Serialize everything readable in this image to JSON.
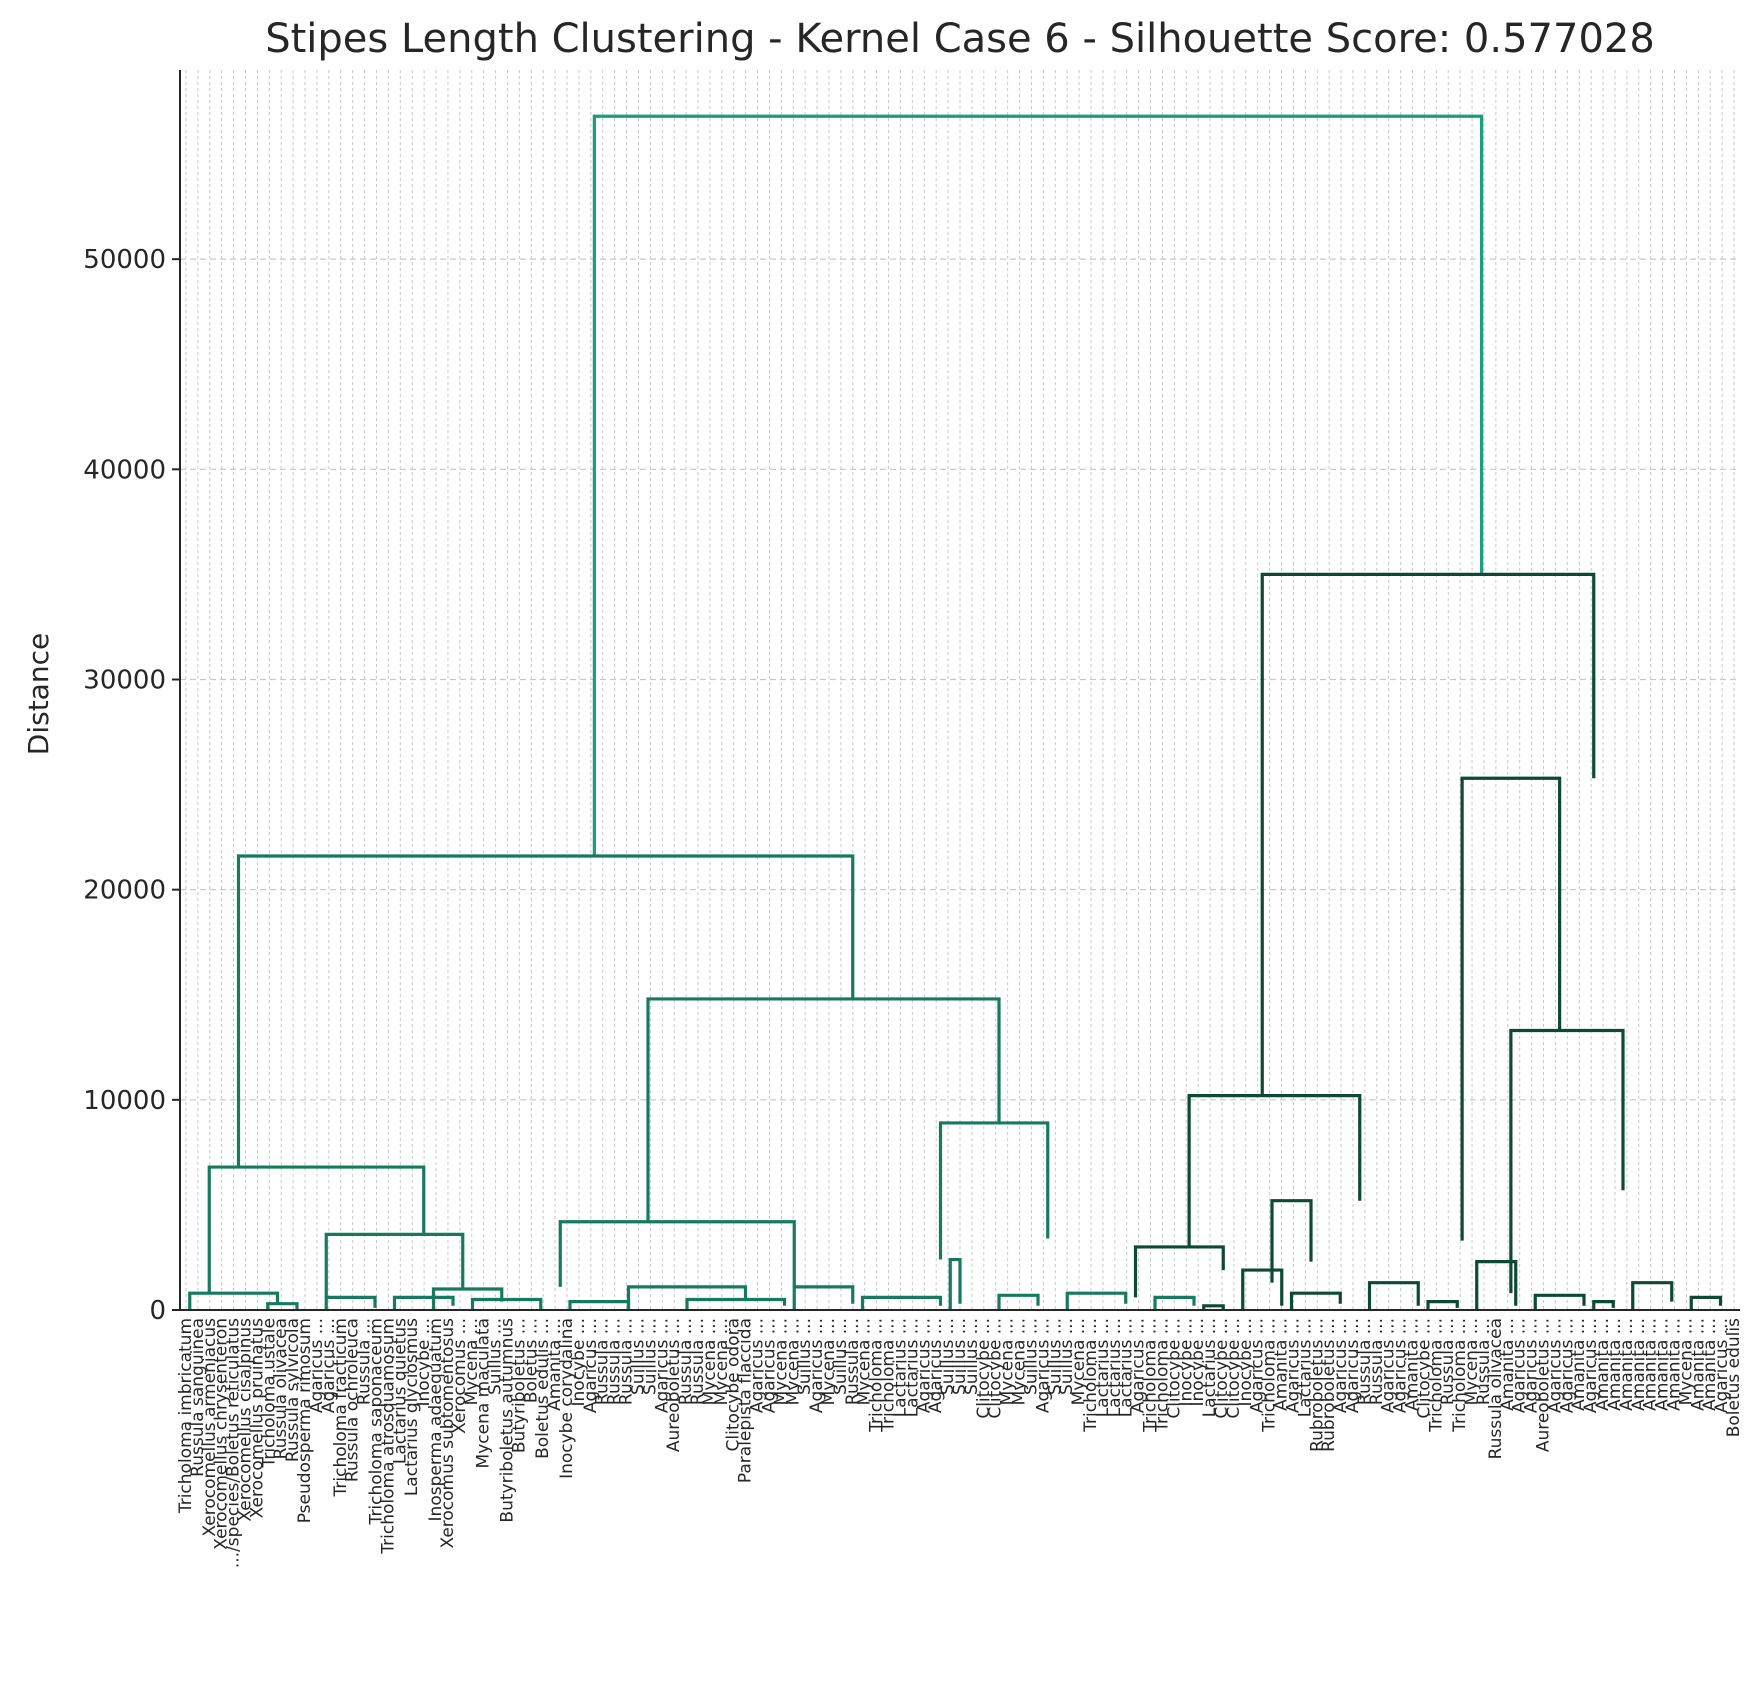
{
  "chart_data": {
    "type": "dendrogram",
    "title": "Stipes Length Clustering - Kernel Case 6 - Silhouette Score: 0.577028",
    "xlabel": "",
    "ylabel": "Distance",
    "ylim": [
      0,
      59000
    ],
    "yticks": [
      0,
      10000,
      20000,
      30000,
      40000,
      50000
    ],
    "grid": true,
    "colors": {
      "root": "#1a9e7b",
      "cluster_a": "#177a5e",
      "cluster_b": "#0d4a35",
      "axis": "#262626",
      "grid": "#c8c8c8"
    },
    "leaves": [
      "Tricholoma imbricatum",
      "Russula sanguinea",
      "Xerocomellus armeniacus",
      "Xerocomellus chrysenteron",
      ".../species/Boletus reticulatus",
      "Xerocomellus cisalpinus",
      "Xerocomellus pruinatus",
      "Tricholoma ustale",
      "Russula olivacea",
      "Russula sylvicola",
      "Pseudosperma rimosum",
      "Agaricus ...",
      "Agaricus ...",
      "Tricholoma fracticum",
      "Russula ochroleuca",
      "Russula ...",
      "Tricholoma saponaceum",
      "Tricholoma atrosquamosum",
      "Lactarius quietus",
      "Lactarius glyciosmus",
      "Inocybe ...",
      "Inosperma adaequatum",
      "Xerocomus subtomentosus",
      "Xerocomus ...",
      "Mycena ...",
      "Mycena maculata",
      "Suillus ...",
      "Butyriboletus autumnus",
      "Butyriboletus ...",
      "Boletus ...",
      "Boletus edulis ...",
      "Amanita ...",
      "Inocybe corydalina",
      "Inocybe ...",
      "Agaricus ...",
      "Russula ...",
      "Russula ...",
      "Russula ...",
      "Suillus ...",
      "Suillus ...",
      "Agaricus ...",
      "Aureoboletus ...",
      "Russula ...",
      "Russula ...",
      "Mycena ...",
      "Mycena ...",
      "Clitocybe odora",
      "Paralepista flaccida",
      "Agaricus ...",
      "Agaricus ...",
      "Mycena ...",
      "Mycena ...",
      "Suillus ...",
      "Agaricus ...",
      "Mycena ...",
      "Suillus ...",
      "Russula ...",
      "Mycena ...",
      "Tricholoma ...",
      "Tricholoma ...",
      "Lactarius ...",
      "Lactarius ...",
      "Agaricus ...",
      "Agaricus ...",
      "Suillus ...",
      "Suillus ...",
      "Suillus ...",
      "Clitocybe ...",
      "Clitocybe ...",
      "Mycena ...",
      "Mycena ...",
      "Suillus ...",
      "Agaricus ...",
      "Suillus ...",
      "Suillus ...",
      "Mycena ...",
      "Tricholoma ...",
      "Lactarius ...",
      "Lactarius ...",
      "Lactarius ...",
      "Agaricus ...",
      "Tricholoma ...",
      "Tricholoma ...",
      "Clitocybe ...",
      "Inocybe ...",
      "Inocybe ...",
      "Lactarius ...",
      "Clitocybe ...",
      "Clitocybe ...",
      "Inocybe ...",
      "Agaricus ...",
      "Tricholoma ...",
      "Amanita ...",
      "Agaricus ...",
      "Lactarius ...",
      "Rubroboletus ...",
      "Rubroboletus ...",
      "Agaricus ...",
      "Agaricus ...",
      "Russula ...",
      "Russula ...",
      "Agaricus ...",
      "Agaricus ...",
      "Amanita ...",
      "Clitocybe ...",
      "Tricholoma ...",
      "Russula ...",
      "Tricholoma ...",
      "Mycena ...",
      "Russula ...",
      "Russula olivacea",
      "Amanita ...",
      "Agaricus ...",
      "Agaricus ...",
      "Aureoboletus ...",
      "Agaricus ...",
      "Agaricus ...",
      "Amanita ...",
      "Agaricus ...",
      "Amanita ...",
      "Amanita ...",
      "Amanita ...",
      "Amanita ...",
      "Amanita ...",
      "Amanita ...",
      "Amanita ...",
      "Mycena ...",
      "Amanita ...",
      "Amanita ...",
      "Agaricus ...",
      "Boletus edulis"
    ],
    "links": [
      [
        0.12,
        1.62,
        0.8,
        0.9
      ],
      [
        0.6,
        2.0,
        3.95,
        5.8
      ],
      [
        1.7,
        1.85,
        6.6,
        7.4
      ],
      [
        9.0,
        9.6,
        10.9,
        11.8
      ],
      [
        10.3,
        11.0,
        12.6,
        13.4
      ],
      [
        12.0,
        12.9,
        14.4,
        15.4
      ],
      [
        13.6,
        14.3,
        16.4,
        17.2
      ],
      [
        9.6,
        12.9,
        21.2,
        22.2
      ],
      [
        8.0,
        11.2,
        20.6,
        24.5
      ],
      [
        10.0,
        20.0,
        28.2,
        31.2
      ],
      [
        15.0,
        24.0,
        34.2,
        37.4
      ],
      [
        24.0,
        36.0,
        40.8,
        44.6
      ],
      [
        8.0,
        12.0,
        48.8,
        50.6
      ],
      [
        34.0,
        32.0,
        47.2,
        54.6
      ],
      [
        36.0,
        44.0,
        58.2,
        64.6
      ],
      [
        40.0,
        42.0,
        66.3,
        69.6
      ],
      [
        40.0,
        41.0,
        71.2,
        72.6
      ],
      [
        12.0,
        30.0,
        61.8,
        71.9
      ],
      [
        12.0,
        16.0,
        76.2,
        77.6
      ],
      [
        40.0,
        23.0,
        75.8,
        79.6
      ],
      [
        36.0,
        64.0,
        82.3,
        89.6
      ],
      [
        36.0,
        45.0,
        92.4,
        95.6
      ],
      [
        64.0,
        50.0,
        88.6,
        97.4
      ],
      [
        54.0,
        54.0,
        101.0,
        110.4
      ],
      [
        72.0,
        72.0,
        122.2,
        127.6
      ],
      [
        12.0,
        63.0,
        127.0,
        137.2
      ],
      [
        37.0,
        43.0,
        130.2,
        134.6
      ],
      [
        18.5,
        26.0,
        139.6,
        143.4
      ],
      [
        18.5,
        57.6,
        127.0,
        147.6
      ],
      [
        95.0,
        103.0,
        143.6,
        148.6
      ],
      [
        125.0,
        114.0,
        146.6,
        153.9
      ],
      [
        132.0,
        128.0,
        154.2,
        158.4
      ],
      [
        57.6,
        60.0,
        161.5,
        164.6
      ],
      [
        60.0,
        56.0,
        167.8,
        171.2
      ],
      [
        8.0,
        62.0,
        162.0,
        169.6
      ],
      [
        107.0,
        98.0,
        165.8,
        173.8
      ],
      [
        85.0,
        78.0,
        176.0,
        180.2
      ],
      [
        96.0,
        91.0,
        180.4,
        184.4
      ],
      [
        55.8,
        38.0,
        179.3,
        183.7
      ],
      [
        110.0,
        124.0,
        178.0,
        185.6
      ],
      [
        75.0,
        76.0,
        189.7,
        191.8
      ],
      [
        83.0,
        61.0,
        191.6,
        194.0
      ],
      [
        45.0,
        38.0,
        192.2,
        195.8
      ],
      [
        107.0,
        96.0,
        196.2,
        199.6
      ],
      [
        172.0,
        107.0,
        197.2,
        203.6
      ],
      [
        116.0,
        120.0,
        204.2,
        207.4
      ],
      [
        151.0,
        113.0,
        208.1,
        211.4
      ],
      [
        180.0,
        174.0,
        212.7,
        216.6
      ],
      [
        116.0,
        108.0,
        219.0,
        224.0
      ],
      [
        142.0,
        160.0,
        224.9,
        231.8
      ],
      [
        154.0,
        122.0,
        229.2,
        233.8
      ],
      [
        176.0,
        168.0,
        232.8,
        237.0
      ],
      [
        20.0,
        20.0,
        236.0,
        244.0
      ],
      [
        30.0,
        30.0,
        247.0,
        260.0
      ],
      [
        30.0,
        30.0,
        262.0,
        270.0
      ],
      [
        10.0,
        20.0,
        253.0,
        265.0
      ],
      [
        12.0,
        4.0,
        259.0,
        268.0
      ],
      [
        15.0,
        17.0,
        273.0,
        278.0
      ],
      [
        0.5,
        0.8,
        0.9,
        1.3
      ],
      [
        90.0,
        45.0,
        6.0,
        9.0
      ],
      [
        95.0,
        60.0,
        9.0,
        12.0
      ],
      [
        85.0,
        75.0,
        12.0,
        16.0
      ],
      [
        68.0,
        88.0,
        16.0,
        20.0
      ],
      [
        60.0,
        75.0,
        20.0,
        24.0
      ],
      [
        70.0,
        56.0,
        24.0,
        28.0
      ],
      [
        100.0,
        90.0,
        28.0,
        34.0
      ],
      [
        49.0,
        10.0,
        33.5,
        36.0
      ],
      [
        93.0,
        93.0,
        39.5,
        45.0
      ],
      [
        84.0,
        90.0,
        46.0,
        48.5
      ],
      [
        25.0,
        25.0,
        49.4,
        51.0
      ],
      [
        52.0,
        47.0,
        53.0,
        55.0
      ],
      [
        22.0,
        16.0,
        57.6,
        61.0
      ],
      [
        6.0,
        45.0,
        63.0,
        67.0
      ],
      [
        70.0,
        37.0,
        69.0,
        72.0
      ],
      [
        29.0,
        50.0,
        73.0,
        75.0
      ],
      [
        45.0,
        13.0,
        76.0,
        78.2
      ],
      [
        96.0,
        96.0,
        80.0,
        83.0
      ],
      [
        58.0,
        36.0,
        85.5,
        87.5
      ],
      [
        95.0,
        105.0,
        89.8,
        93.0
      ],
      [
        40.0,
        47.0,
        92.2,
        94.6
      ],
      [
        105.0,
        95.0,
        95.7,
        98.2
      ],
      [
        84.0,
        101.0,
        98.9,
        101.0
      ],
      [
        110.0,
        40.0,
        102.8,
        105.0
      ],
      [
        37.0,
        37.0,
        106.0,
        108.5
      ],
      [
        66.0,
        79.0,
        109.0,
        111.3
      ]
    ]
  }
}
